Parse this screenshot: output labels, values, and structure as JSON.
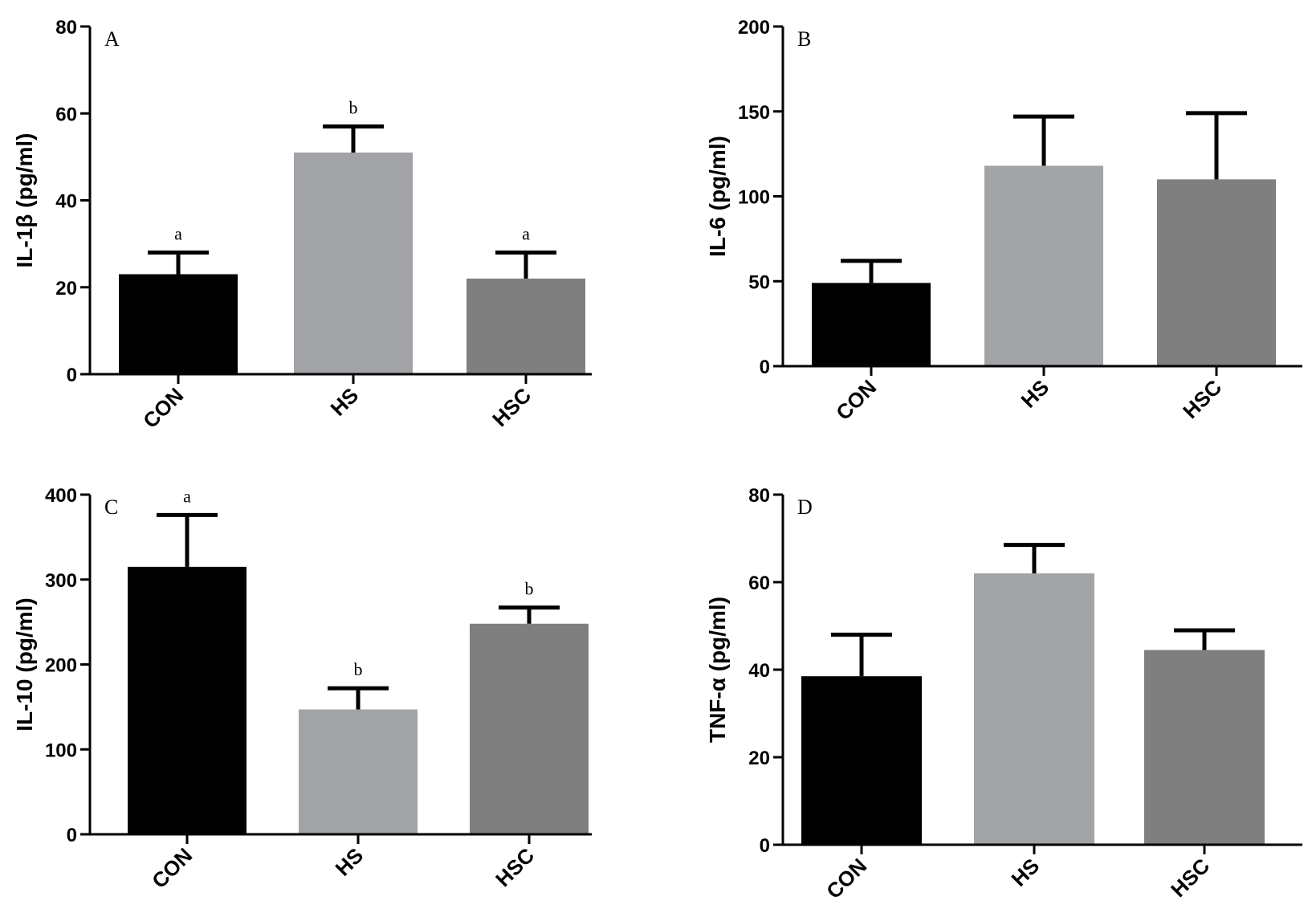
{
  "chart_data": [
    {
      "type": "bar",
      "panel": "A",
      "ylabel": "IL-1β (pg/ml)",
      "ylim": [
        0,
        80
      ],
      "yticks": [
        0,
        20,
        40,
        60,
        80
      ],
      "categories": [
        "CON",
        "HS",
        "HSC"
      ],
      "values": [
        23,
        51,
        22
      ],
      "errors": [
        5,
        6,
        6
      ],
      "significance": [
        "a",
        "b",
        "a"
      ],
      "colors": [
        "#000000",
        "#a2a3a6",
        "#7f7f7f"
      ]
    },
    {
      "type": "bar",
      "panel": "B",
      "ylabel": "IL-6 (pg/ml)",
      "ylim": [
        0,
        200
      ],
      "yticks": [
        0,
        50,
        100,
        150,
        200
      ],
      "categories": [
        "CON",
        "HS",
        "HSC"
      ],
      "values": [
        49,
        118,
        110
      ],
      "errors": [
        13,
        29,
        39
      ],
      "significance": [
        "",
        "",
        ""
      ],
      "colors": [
        "#000000",
        "#a2a3a6",
        "#7f7f7f"
      ]
    },
    {
      "type": "bar",
      "panel": "C",
      "ylabel": "IL-10 (pg/ml)",
      "ylim": [
        0,
        400
      ],
      "yticks": [
        0,
        100,
        200,
        300,
        400
      ],
      "categories": [
        "CON",
        "HS",
        "HSC"
      ],
      "values": [
        315,
        147,
        248
      ],
      "errors": [
        61,
        25,
        19
      ],
      "significance": [
        "a",
        "b",
        "b"
      ],
      "colors": [
        "#000000",
        "#a2a3a6",
        "#7f7f7f"
      ]
    },
    {
      "type": "bar",
      "panel": "D",
      "ylabel": "TNF-α (pg/ml)",
      "ylim": [
        0,
        80
      ],
      "yticks": [
        0,
        20,
        40,
        60,
        80
      ],
      "categories": [
        "CON",
        "HS",
        "HSC"
      ],
      "values": [
        38.5,
        62,
        44.5
      ],
      "errors": [
        9.5,
        6.5,
        4.5
      ],
      "significance": [
        "",
        "",
        ""
      ],
      "colors": [
        "#000000",
        "#a2a3a6",
        "#7f7f7f"
      ]
    }
  ]
}
